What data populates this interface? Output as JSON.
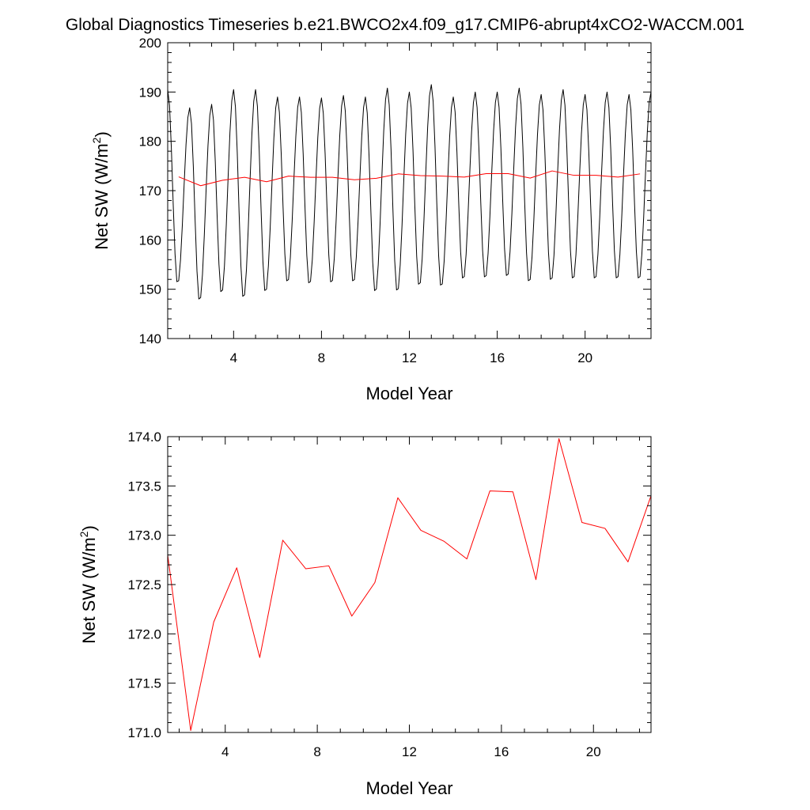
{
  "title": "Global Diagnostics Timeseries b.e21.BWCO2x4.f09_g17.CMIP6-abrupt4xCO2-WACCM.001",
  "chart_data": [
    {
      "type": "line",
      "xlabel": "Model Year",
      "ylabel": "Net SW (W/m",
      "ylabel_sup": "2",
      "ylabel_end": ")",
      "xlim": [
        1,
        23
      ],
      "ylim": [
        140,
        200
      ],
      "xticks": [
        4,
        8,
        12,
        16,
        20
      ],
      "xtick_labels": [
        "4",
        "8",
        "12",
        "16",
        "20"
      ],
      "yticks": [
        140,
        150,
        160,
        170,
        180,
        190,
        200
      ],
      "ytick_labels": [
        "140",
        "150",
        "160",
        "170",
        "180",
        "190",
        "200"
      ],
      "series": [
        {
          "color": "#000000",
          "monthly_cycle": {
            "start_year": 1,
            "years": 22,
            "maxima": [
              190.5,
              186.8,
              187.5,
              190.5,
              190.5,
              189.0,
              189.0,
              188.8,
              189.3,
              189.0,
              190.8,
              190.0,
              191.5,
              189.0,
              190.0,
              190.0,
              190.8,
              189.5,
              190.5,
              189.5,
              190.0,
              189.5
            ],
            "minima": [
              151.0,
              147.5,
              149.0,
              148.0,
              149.2,
              151.2,
              150.8,
              151.0,
              151.2,
              149.2,
              149.3,
              150.5,
              150.3,
              151.8,
              152.0,
              152.3,
              151.2,
              151.5,
              151.8,
              151.8,
              151.8,
              151.8
            ],
            "end_value": 190.0
          }
        },
        {
          "color": "#ff0000",
          "x": [
            1.5,
            2.5,
            3.5,
            4.5,
            5.5,
            6.5,
            7.5,
            8.5,
            9.5,
            10.5,
            11.5,
            12.5,
            13.5,
            14.5,
            15.5,
            16.5,
            17.5,
            18.5,
            19.5,
            20.5,
            21.5,
            22.5
          ],
          "values": [
            172.8,
            171.0,
            172.1,
            172.7,
            171.8,
            172.95,
            172.7,
            172.7,
            172.2,
            172.5,
            173.4,
            173.05,
            172.95,
            172.75,
            173.45,
            173.45,
            172.55,
            174.0,
            173.1,
            173.1,
            172.75,
            173.4
          ]
        }
      ]
    },
    {
      "type": "line",
      "xlabel": "Model Year",
      "ylabel": "Net SW (W/m",
      "ylabel_sup": "2",
      "ylabel_end": ")",
      "xlim": [
        1.5,
        22.5
      ],
      "ylim": [
        171.0,
        174.0
      ],
      "xticks": [
        4,
        8,
        12,
        16,
        20
      ],
      "xtick_labels": [
        "4",
        "8",
        "12",
        "16",
        "20"
      ],
      "yticks": [
        171.0,
        171.5,
        172.0,
        172.5,
        173.0,
        173.5,
        174.0
      ],
      "ytick_labels": [
        "171.0",
        "171.5",
        "172.0",
        "172.5",
        "173.0",
        "173.5",
        "174.0"
      ],
      "series": [
        {
          "color": "#ff0000",
          "x": [
            1.5,
            2.5,
            3.5,
            4.5,
            5.5,
            6.5,
            7.5,
            8.5,
            9.5,
            10.5,
            11.5,
            12.5,
            13.5,
            14.5,
            15.5,
            16.5,
            17.5,
            18.5,
            19.5,
            20.5,
            21.5,
            22.5
          ],
          "values": [
            172.8,
            171.02,
            172.12,
            172.67,
            171.76,
            172.95,
            172.66,
            172.69,
            172.18,
            172.52,
            173.38,
            173.05,
            172.94,
            172.76,
            173.45,
            173.44,
            172.55,
            173.98,
            173.13,
            173.07,
            172.73,
            173.4
          ]
        }
      ]
    }
  ]
}
